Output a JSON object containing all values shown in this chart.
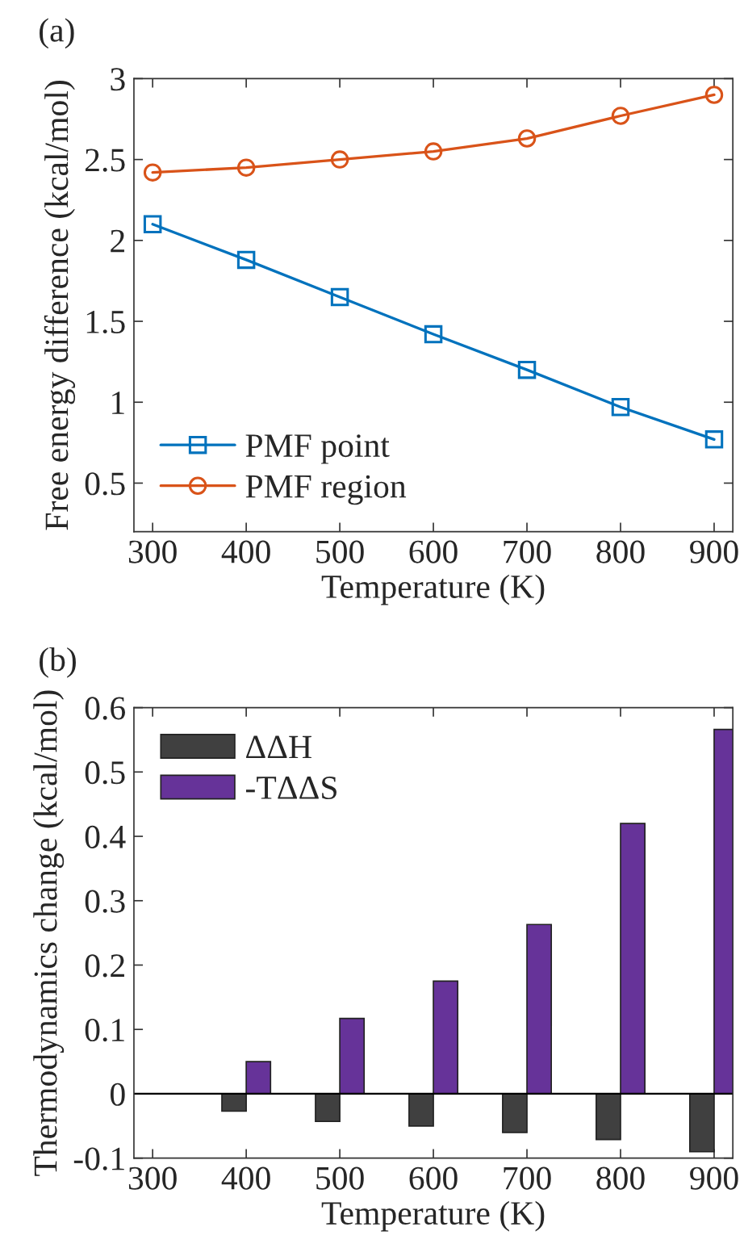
{
  "chart_data": [
    {
      "type": "line",
      "title": "(a)",
      "xlabel": "Temperature (K)",
      "ylabel": "Free energy difference (kcal/mol)",
      "x": [
        300,
        400,
        500,
        600,
        700,
        800,
        900
      ],
      "series": [
        {
          "name": "PMF point",
          "color": "#0072bd",
          "marker": "square",
          "values": [
            2.1,
            1.88,
            1.65,
            1.42,
            1.2,
            0.97,
            0.77
          ]
        },
        {
          "name": "PMF region",
          "color": "#d95319",
          "marker": "circle",
          "values": [
            2.42,
            2.45,
            2.5,
            2.55,
            2.63,
            2.77,
            2.9
          ]
        }
      ],
      "xlim": [
        280,
        920
      ],
      "xticks": [
        300,
        400,
        500,
        600,
        700,
        800,
        900
      ],
      "ylim": [
        0.2,
        3
      ],
      "yticks": [
        0.5,
        1,
        1.5,
        2,
        2.5,
        3
      ],
      "grid": false,
      "legend": "bottom left",
      "line_style": "solid"
    },
    {
      "type": "bar",
      "title": "(b)",
      "xlabel": "Temperature (K)",
      "ylabel": "Thermodynamics change (kcal/mol)",
      "x": [
        400,
        500,
        600,
        700,
        800,
        900
      ],
      "series": [
        {
          "name": "ΔΔH",
          "color": "#404040",
          "values": [
            -0.027,
            -0.043,
            -0.05,
            -0.06,
            -0.071,
            -0.09
          ]
        },
        {
          "name": "-TΔΔS",
          "color": "#663399",
          "values": [
            0.05,
            0.117,
            0.175,
            0.263,
            0.42,
            0.566
          ]
        }
      ],
      "xlim": [
        280,
        920
      ],
      "xticks": [
        300,
        400,
        500,
        600,
        700,
        800,
        900
      ],
      "ylim": [
        -0.1,
        0.6
      ],
      "yticks": [
        -0.1,
        0,
        0.1,
        0.2,
        0.3,
        0.4,
        0.5,
        0.6
      ],
      "ref_lines": [
        {
          "axis": "y",
          "value": 0,
          "color": "#000000"
        }
      ],
      "grid": false,
      "legend": "top left"
    }
  ]
}
